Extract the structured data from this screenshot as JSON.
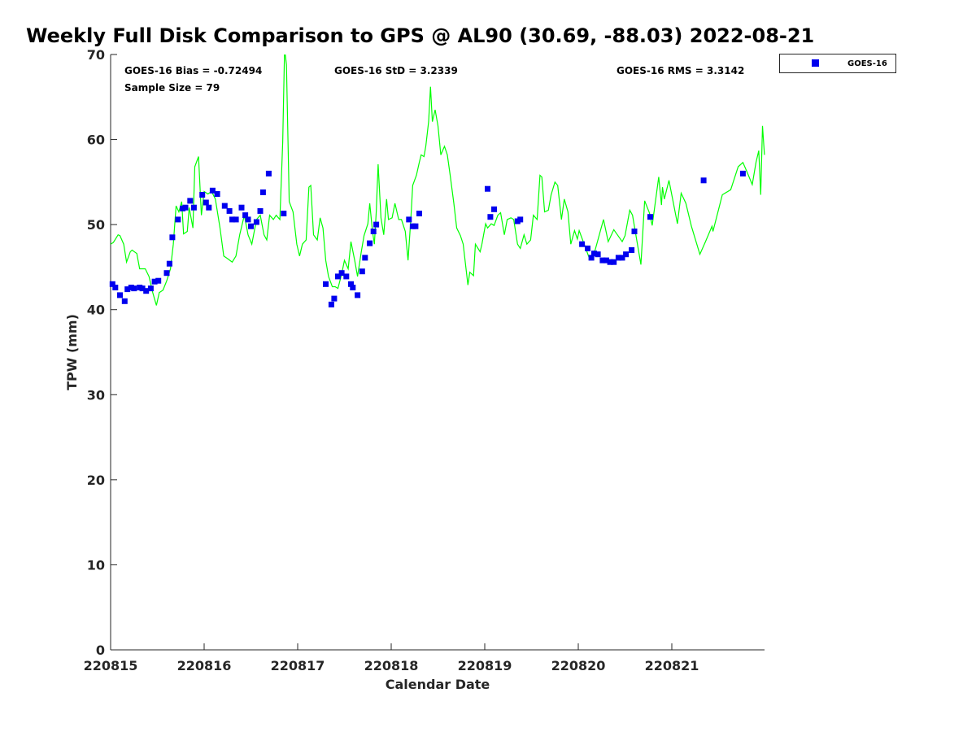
{
  "chart_data": {
    "type": "scatter",
    "title": "Weekly Full Disk Comparison to GPS @ AL90 (30.69, -88.03) 2022-08-21",
    "xlabel": "Calendar Date",
    "ylabel": "TPW (mm)",
    "xlim": [
      0,
      6.99
    ],
    "ylim": [
      0,
      70
    ],
    "x_unit": "days since 220815",
    "xticks": [
      0,
      1,
      2,
      3,
      4,
      5,
      6
    ],
    "xtick_labels": [
      "220815",
      "220816",
      "220817",
      "220818",
      "220819",
      "220820",
      "220821"
    ],
    "yticks": [
      0,
      10,
      20,
      30,
      40,
      50,
      60,
      70
    ],
    "ytick_labels": [
      "0",
      "10",
      "20",
      "30",
      "40",
      "50",
      "60",
      "70"
    ],
    "grid": false,
    "legend": {
      "entries": [
        "GOES-16"
      ],
      "placement": "outside-top-right"
    },
    "annotations": {
      "bias": "GOES-16 Bias = -0.72494",
      "std": "GOES-16 StD = 3.2339",
      "rms": "GOES-16 RMS = 3.3142",
      "sample": "Sample Size = 79"
    },
    "series": [
      {
        "name": "GOES-16",
        "kind": "scatter",
        "color": "#0000ee",
        "x": [
          0.02,
          0.05,
          0.1,
          0.15,
          0.18,
          0.22,
          0.25,
          0.31,
          0.34,
          0.38,
          0.43,
          0.47,
          0.51,
          0.6,
          0.63,
          0.66,
          0.72,
          0.77,
          0.8,
          0.85,
          0.89,
          0.98,
          1.02,
          1.05,
          1.09,
          1.14,
          1.22,
          1.27,
          1.3,
          1.34,
          1.4,
          1.44,
          1.47,
          1.5,
          1.56,
          1.6,
          1.63,
          1.69,
          1.85,
          2.3,
          2.36,
          2.39,
          2.43,
          2.47,
          2.52,
          2.57,
          2.59,
          2.64,
          2.69,
          2.72,
          2.77,
          2.81,
          2.84,
          3.19,
          3.23,
          3.26,
          3.3,
          4.03,
          4.06,
          4.1,
          4.35,
          4.38,
          5.04,
          5.1,
          5.14,
          5.17,
          5.21,
          5.26,
          5.3,
          5.34,
          5.38,
          5.43,
          5.47,
          5.51,
          5.57,
          5.6,
          5.77,
          6.34,
          6.76
        ],
        "y": [
          43.0,
          42.6,
          41.7,
          41.0,
          42.4,
          42.6,
          42.5,
          42.6,
          42.5,
          42.2,
          42.5,
          43.3,
          43.4,
          44.3,
          45.4,
          48.5,
          50.6,
          51.9,
          52.0,
          52.8,
          52.0,
          53.5,
          52.6,
          52.0,
          54.0,
          53.6,
          52.2,
          51.6,
          50.6,
          50.6,
          52.0,
          51.1,
          50.6,
          49.8,
          50.3,
          51.6,
          53.8,
          56.0,
          51.3,
          43.0,
          40.6,
          41.3,
          43.9,
          44.3,
          43.9,
          43.0,
          42.6,
          41.7,
          44.5,
          46.1,
          47.8,
          49.2,
          50.0,
          50.6,
          49.8,
          49.8,
          51.3,
          54.2,
          50.9,
          51.8,
          50.4,
          50.6,
          47.7,
          47.2,
          46.1,
          46.6,
          46.5,
          45.8,
          45.8,
          45.6,
          45.6,
          46.1,
          46.1,
          46.5,
          47.0,
          49.2,
          50.9,
          55.2,
          56.0
        ]
      },
      {
        "name": "GPS",
        "kind": "line",
        "color": "#00ff00",
        "x": [
          0,
          0.03,
          0.08,
          0.1,
          0.14,
          0.17,
          0.21,
          0.23,
          0.28,
          0.31,
          0.37,
          0.41,
          0.45,
          0.49,
          0.52,
          0.56,
          0.6,
          0.64,
          0.67,
          0.7,
          0.73,
          0.76,
          0.78,
          0.82,
          0.84,
          0.88,
          0.9,
          0.94,
          0.97,
          1.0,
          1.04,
          1.08,
          1.12,
          1.17,
          1.21,
          1.25,
          1.3,
          1.34,
          1.38,
          1.43,
          1.47,
          1.51,
          1.56,
          1.6,
          1.64,
          1.67,
          1.7,
          1.74,
          1.77,
          1.81,
          1.84,
          1.86,
          1.88,
          1.91,
          1.95,
          1.99,
          2.02,
          2.05,
          2.09,
          2.12,
          2.14,
          2.17,
          2.21,
          2.24,
          2.27,
          2.3,
          2.33,
          2.37,
          2.4,
          2.43,
          2.47,
          2.5,
          2.54,
          2.57,
          2.61,
          2.64,
          2.68,
          2.71,
          2.75,
          2.77,
          2.8,
          2.82,
          2.84,
          2.86,
          2.89,
          2.92,
          2.95,
          2.97,
          3.01,
          3.04,
          3.08,
          3.11,
          3.15,
          3.18,
          3.21,
          3.23,
          3.27,
          3.3,
          3.32,
          3.35,
          3.37,
          3.4,
          3.42,
          3.44,
          3.47,
          3.5,
          3.53,
          3.57,
          3.6,
          3.63,
          3.67,
          3.7,
          3.74,
          3.77,
          3.82,
          3.84,
          3.88,
          3.9,
          3.95,
          3.97,
          4.01,
          4.03,
          4.07,
          4.1,
          4.14,
          4.17,
          4.21,
          4.24,
          4.28,
          4.31,
          4.35,
          4.38,
          4.42,
          4.45,
          4.49,
          4.52,
          4.56,
          4.59,
          4.61,
          4.64,
          4.68,
          4.71,
          4.75,
          4.78,
          4.82,
          4.85,
          4.89,
          4.92,
          4.96,
          4.99,
          5.01,
          5.12,
          5.18,
          5.27,
          5.32,
          5.38,
          5.47,
          5.5,
          5.55,
          5.58,
          5.67,
          5.71,
          5.76,
          5.79,
          5.86,
          5.89,
          5.9,
          5.92,
          5.97,
          6.06,
          6.1,
          6.15,
          6.21,
          6.3,
          6.36,
          6.43,
          6.44,
          6.54,
          6.63,
          6.71,
          6.76,
          6.8,
          6.86,
          6.9,
          6.93,
          6.95,
          6.97,
          6.99
        ],
        "y": [
          47.7,
          47.9,
          48.8,
          48.7,
          47.7,
          45.6,
          46.8,
          47.0,
          46.6,
          44.8,
          44.8,
          43.9,
          42.0,
          40.5,
          42.0,
          42.3,
          43.4,
          44.8,
          47.7,
          52.2,
          51.5,
          52.7,
          48.9,
          49.2,
          52.0,
          49.6,
          56.8,
          58.0,
          51.1,
          53.9,
          53.6,
          53.9,
          53.0,
          49.6,
          46.3,
          46.0,
          45.6,
          46.3,
          48.8,
          51.1,
          48.8,
          47.7,
          50.6,
          51.1,
          48.8,
          48.2,
          51.1,
          50.6,
          51.1,
          50.6,
          59.7,
          70.7,
          68.8,
          52.7,
          51.5,
          47.7,
          46.3,
          47.7,
          48.2,
          54.4,
          54.6,
          48.8,
          48.2,
          50.8,
          49.6,
          45.8,
          43.9,
          42.7,
          42.7,
          42.5,
          44.2,
          45.8,
          44.8,
          48.0,
          45.8,
          43.9,
          46.8,
          48.7,
          50.1,
          52.5,
          49.2,
          47.7,
          51.5,
          57.1,
          50.8,
          48.8,
          53.0,
          50.6,
          50.8,
          52.5,
          50.6,
          50.6,
          49.2,
          45.8,
          50.6,
          54.6,
          55.8,
          57.3,
          58.2,
          58.0,
          59.2,
          62.1,
          66.2,
          62.1,
          63.5,
          61.6,
          58.2,
          59.2,
          58.2,
          55.8,
          52.5,
          49.6,
          48.7,
          47.7,
          42.9,
          44.4,
          44.0,
          47.7,
          46.8,
          47.7,
          50.1,
          49.6,
          50.1,
          49.9,
          51.1,
          51.4,
          48.8,
          50.6,
          50.8,
          50.6,
          47.7,
          47.2,
          48.8,
          47.7,
          48.2,
          51.1,
          50.6,
          55.8,
          55.6,
          51.5,
          51.7,
          53.5,
          55.0,
          54.6,
          50.6,
          53.0,
          51.5,
          47.7,
          49.3,
          48.3,
          49.3,
          46.0,
          47.0,
          50.6,
          48.0,
          49.4,
          48.0,
          48.7,
          51.7,
          51.1,
          45.3,
          52.8,
          51.4,
          49.9,
          55.6,
          52.3,
          54.4,
          53.0,
          55.2,
          50.1,
          53.7,
          52.5,
          49.8,
          46.5,
          48.0,
          49.8,
          49.2,
          53.5,
          54.1,
          56.8,
          57.3,
          56.3,
          54.7,
          57.3,
          58.7,
          53.5,
          61.6,
          58.2
        ]
      }
    ]
  }
}
